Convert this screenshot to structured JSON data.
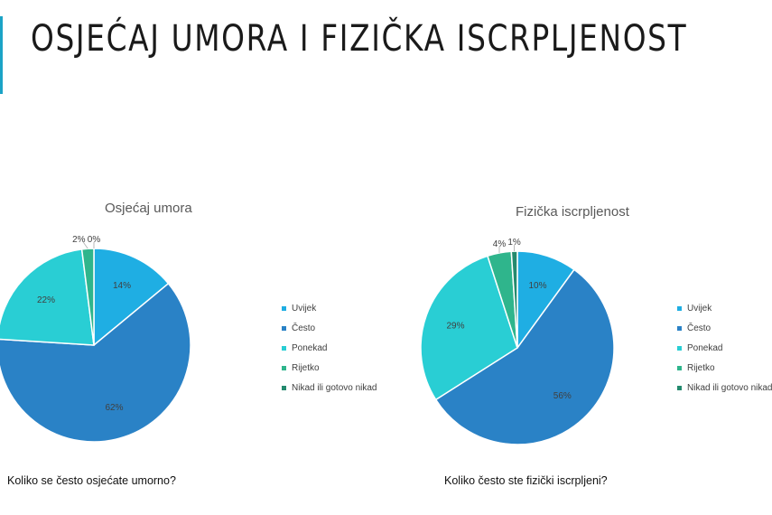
{
  "slide": {
    "title": "OSJEĆAJ UMORA I FIZIČKA ISCRPLJENOST",
    "accent_color": "#1ba3c6"
  },
  "chart_data": [
    {
      "type": "pie",
      "title": "Osjećaj umora",
      "question": "Koliko se često osjećate umorno?",
      "categories": [
        "Uvijek",
        "Često",
        "Ponekad",
        "Rijetko",
        "Nikad ili gotovo nikad"
      ],
      "values": [
        14,
        62,
        22,
        2,
        0
      ],
      "value_labels": [
        "14%",
        "62%",
        "22%",
        "2%",
        "0%"
      ],
      "colors": [
        "#1faee3",
        "#2a82c6",
        "#29ced4",
        "#2fb58c",
        "#248a6e"
      ],
      "legend_position": "right"
    },
    {
      "type": "pie",
      "title": "Fizička iscrpljenost",
      "question": "Koliko često ste fizički iscrpljeni?",
      "categories": [
        "Uvijek",
        "Često",
        "Ponekad",
        "Rijetko",
        "Nikad ili gotovo nikad"
      ],
      "values": [
        10,
        56,
        29,
        4,
        1
      ],
      "value_labels": [
        "10%",
        "56%",
        "29%",
        "4%",
        "1%"
      ],
      "colors": [
        "#1faee3",
        "#2a82c6",
        "#29ced4",
        "#2fb58c",
        "#248a6e"
      ],
      "legend_position": "right"
    }
  ]
}
